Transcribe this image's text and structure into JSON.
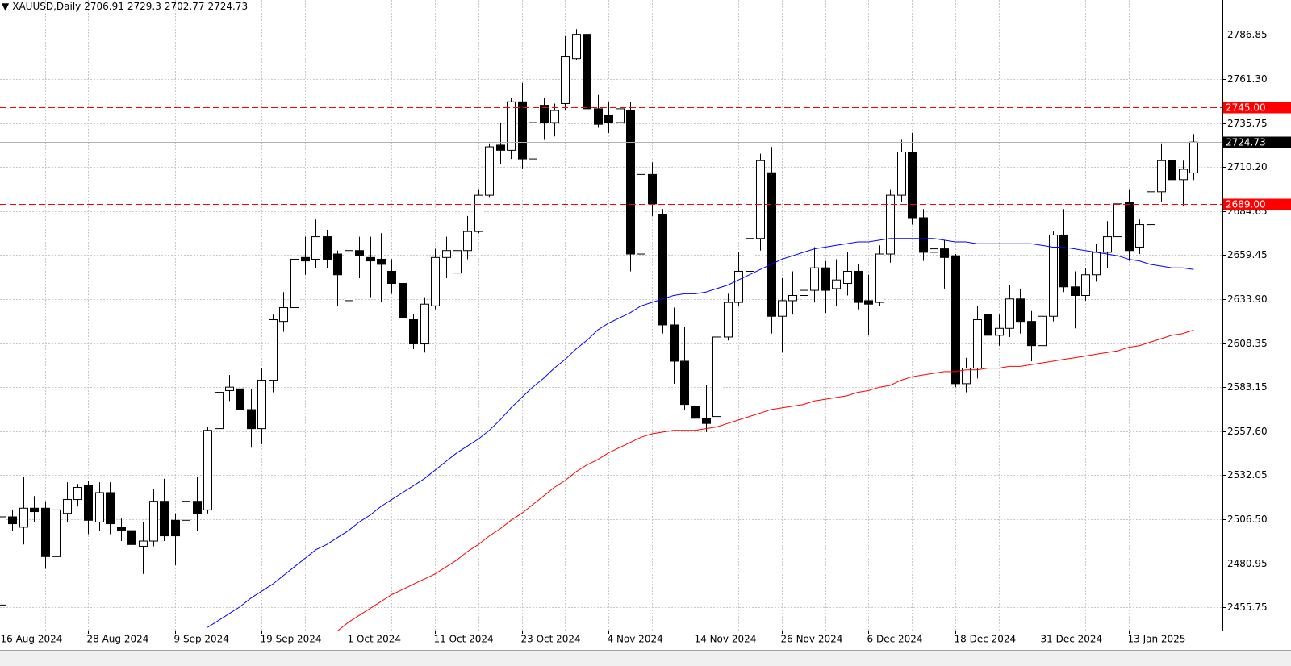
{
  "chart_data": {
    "type": "candlestick",
    "title": "XAUUSD,Daily",
    "categories": [
      "16 Aug 2024",
      null,
      null,
      null,
      null,
      null,
      null,
      null,
      "28 Aug 2024",
      null,
      null,
      null,
      null,
      null,
      null,
      null,
      "9 Sep 2024",
      null,
      null,
      null,
      null,
      null,
      null,
      null,
      "19 Sep 2024",
      null,
      null,
      null,
      null,
      null,
      null,
      null,
      "1 Oct 2024",
      null,
      null,
      null,
      null,
      null,
      null,
      null,
      "11 Oct 2024",
      null,
      null,
      null,
      null,
      null,
      null,
      null,
      "23 Oct 2024",
      null,
      null,
      null,
      null,
      null,
      null,
      null,
      "4 Nov 2024",
      null,
      null,
      null,
      null,
      null,
      null,
      null,
      "14 Nov 2024",
      null,
      null,
      null,
      null,
      null,
      null,
      null,
      "26 Nov 2024",
      null,
      null,
      null,
      null,
      null,
      null,
      null,
      "6 Dec 2024",
      null,
      null,
      null,
      null,
      null,
      null,
      null,
      "18 Dec 2024",
      null,
      null,
      null,
      null,
      null,
      null,
      null,
      "31 Dec 2024",
      null,
      null,
      null,
      null,
      null,
      null,
      null,
      "13 Jan 2025",
      null,
      null,
      null,
      null,
      null,
      null
    ],
    "open": [
      2457,
      2508,
      2502,
      2513,
      2513,
      2485,
      2510,
      2518,
      2526,
      2505,
      2522,
      2502,
      2500,
      2491,
      2494,
      2517,
      2506,
      2506,
      2517,
      2512,
      2559,
      2581,
      2582,
      2570,
      2559,
      2587,
      2621,
      2629,
      2658,
      2657,
      2670,
      2660,
      2633,
      2662,
      2658,
      2657,
      2650,
      2643,
      2622,
      2608,
      2630,
      2658,
      2649,
      2662,
      2673,
      2694,
      2723,
      2720,
      2748,
      2715,
      2746,
      2736,
      2747,
      2773,
      2787,
      2744,
      2740,
      2736,
      2743,
      2660,
      2706,
      2683,
      2619,
      2598,
      2572,
      2565,
      2566,
      2612,
      2632,
      2650,
      2669,
      2707,
      2624,
      2633,
      2636,
      2639,
      2652,
      2640,
      2643,
      2650,
      2633,
      2632,
      2660,
      2694,
      2719,
      2681,
      2661,
      2663,
      2659,
      2585,
      2594,
      2625,
      2613,
      2617,
      2634,
      2621,
      2607,
      2624,
      2671,
      2641,
      2636,
      2648,
      2661,
      2670,
      2690,
      2664,
      2677,
      2696,
      2714,
      2703,
      2706.91
    ],
    "high": [
      2510,
      2512,
      2531,
      2520,
      2517,
      2517,
      2528,
      2527,
      2529,
      2528,
      2528,
      2507,
      2503,
      2505,
      2524,
      2530,
      2510,
      2520,
      2531,
      2560,
      2587,
      2590,
      2589,
      2582,
      2594,
      2625,
      2638,
      2669,
      2670,
      2680,
      2674,
      2662,
      2670,
      2670,
      2670,
      2672,
      2657,
      2648,
      2625,
      2635,
      2663,
      2670,
      2666,
      2682,
      2697,
      2724,
      2736,
      2750,
      2759,
      2740,
      2750,
      2747,
      2786,
      2790,
      2790,
      2752,
      2748,
      2752,
      2748,
      2713,
      2713,
      2686,
      2629,
      2618,
      2585,
      2584,
      2615,
      2637,
      2661,
      2675,
      2718,
      2722,
      2646,
      2650,
      2655,
      2664,
      2656,
      2657,
      2661,
      2654,
      2648,
      2665,
      2697,
      2726,
      2730,
      2686,
      2673,
      2668,
      2660,
      2600,
      2630,
      2634,
      2625,
      2642,
      2640,
      2627,
      2628,
      2673,
      2686,
      2650,
      2652,
      2666,
      2679,
      2700,
      2697,
      2680,
      2701,
      2724,
      2717,
      2714,
      2729.3
    ],
    "low": [
      2455,
      2500,
      2492,
      2505,
      2478,
      2484,
      2505,
      2514,
      2498,
      2500,
      2498,
      2494,
      2480,
      2475,
      2491,
      2494,
      2480,
      2500,
      2500,
      2510,
      2557,
      2575,
      2565,
      2548,
      2550,
      2580,
      2615,
      2627,
      2648,
      2652,
      2652,
      2630,
      2632,
      2646,
      2635,
      2632,
      2637,
      2604,
      2605,
      2603,
      2628,
      2646,
      2645,
      2657,
      2672,
      2693,
      2712,
      2715,
      2709,
      2712,
      2726,
      2728,
      2743,
      2772,
      2724,
      2733,
      2730,
      2727,
      2650,
      2637,
      2682,
      2614,
      2585,
      2570,
      2539,
      2557,
      2563,
      2610,
      2630,
      2648,
      2662,
      2614,
      2603,
      2625,
      2625,
      2632,
      2626,
      2630,
      2636,
      2628,
      2613,
      2630,
      2655,
      2690,
      2677,
      2656,
      2650,
      2640,
      2583,
      2580,
      2588,
      2605,
      2607,
      2612,
      2614,
      2598,
      2603,
      2621,
      2638,
      2617,
      2633,
      2644,
      2652,
      2666,
      2656,
      2660,
      2670,
      2690,
      2690,
      2688,
      2702.77
    ],
    "close": [
      2508,
      2504,
      2513,
      2511,
      2485,
      2512,
      2518,
      2525,
      2506,
      2522,
      2504,
      2500,
      2492,
      2494,
      2517,
      2497,
      2497,
      2517,
      2510,
      2558,
      2580,
      2583,
      2570,
      2559,
      2587,
      2622,
      2629,
      2657,
      2656,
      2670,
      2657,
      2648,
      2662,
      2659,
      2656,
      2654,
      2643,
      2623,
      2608,
      2631,
      2658,
      2662,
      2662,
      2673,
      2694,
      2722,
      2720,
      2748,
      2715,
      2736,
      2736,
      2743,
      2774,
      2787,
      2744,
      2735,
      2736,
      2744,
      2660,
      2706,
      2689,
      2619,
      2598,
      2573,
      2565,
      2562,
      2612,
      2632,
      2650,
      2669,
      2714,
      2624,
      2633,
      2636,
      2639,
      2652,
      2639,
      2645,
      2650,
      2632,
      2631,
      2660,
      2694,
      2719,
      2681,
      2661,
      2663,
      2658,
      2585,
      2594,
      2622,
      2613,
      2617,
      2634,
      2621,
      2607,
      2624,
      2671,
      2641,
      2636,
      2648,
      2661,
      2670,
      2689,
      2662,
      2677,
      2696,
      2714,
      2703,
      2709,
      2724.73
    ],
    "up_color": "#ffffff",
    "down_color": "#000000",
    "series": [
      {
        "color": "#0000ff",
        "values": [
          null,
          null,
          null,
          null,
          null,
          null,
          null,
          null,
          null,
          null,
          null,
          null,
          null,
          null,
          null,
          null,
          null,
          null,
          null,
          2444,
          2448,
          2452,
          2456,
          2461,
          2465,
          2469,
          2474,
          2479,
          2484,
          2489,
          2492,
          2496,
          2500,
          2505,
          2509,
          2514,
          2518,
          2522,
          2526,
          2530,
          2535,
          2540,
          2545,
          2549,
          2553,
          2558,
          2564,
          2571,
          2577,
          2583,
          2588,
          2594,
          2599,
          2605,
          2610,
          2616,
          2620,
          2623,
          2626,
          2630,
          2632,
          2634,
          2636,
          2637,
          2637,
          2638,
          2640,
          2642,
          2645,
          2648,
          2651,
          2654,
          2657,
          2659,
          2661,
          2663,
          2664,
          2665,
          2666,
          2667,
          2667,
          2668,
          2669,
          2669,
          2669,
          2669,
          2669,
          2668,
          2667,
          2667,
          2666,
          2666,
          2666,
          2666,
          2666,
          2666,
          2665,
          2664,
          2664,
          2663,
          2662,
          2661,
          2660,
          2659,
          2657,
          2656,
          2654,
          2653,
          2652,
          2652,
          2651
        ]
      },
      {
        "color": "#ff0000",
        "values": [
          null,
          null,
          null,
          null,
          null,
          null,
          null,
          null,
          null,
          null,
          null,
          null,
          null,
          null,
          null,
          null,
          null,
          null,
          null,
          null,
          null,
          null,
          null,
          null,
          null,
          null,
          null,
          null,
          null,
          null,
          null,
          2442,
          2447,
          2451,
          2455,
          2459,
          2463,
          2466,
          2469,
          2472,
          2475,
          2479,
          2483,
          2488,
          2492,
          2497,
          2501,
          2506,
          2510,
          2515,
          2520,
          2525,
          2529,
          2534,
          2538,
          2541,
          2545,
          2548,
          2551,
          2554,
          2556,
          2557,
          2558,
          2558,
          2558,
          2559,
          2560,
          2562,
          2564,
          2566,
          2568,
          2570,
          2571,
          2572,
          2573,
          2575,
          2576,
          2577,
          2578,
          2580,
          2581,
          2583,
          2584,
          2587,
          2589,
          2590,
          2591,
          2592,
          2592,
          2593,
          2593,
          2594,
          2594,
          2595,
          2595,
          2596,
          2597,
          2598,
          2599,
          2600,
          2601,
          2602,
          2603,
          2604,
          2606,
          2607,
          2609,
          2611,
          2613,
          2614,
          2616
        ]
      }
    ],
    "ylim": [
      2442.25,
      2806.9
    ],
    "yticks": [
      2786.85,
      {
        "value": 2761.3,
        "label": "2761.30"
      },
      2735.75,
      {
        "value": 2710.2,
        "label": "2710.20"
      },
      2684.65,
      2659.45,
      {
        "value": 2633.9,
        "label": "2633.90"
      },
      2608.35,
      2583.15,
      {
        "value": 2557.6,
        "label": "2557.60"
      },
      2532.05,
      {
        "value": 2506.5,
        "label": "2506.50"
      },
      2480.95,
      2455.75
    ],
    "levels": [
      {
        "value": 2745,
        "label": "2745.00",
        "color": "#ff0000"
      },
      {
        "value": 2689,
        "label": "2689.00",
        "color": "#ff0000"
      }
    ],
    "grid": true
  }
}
